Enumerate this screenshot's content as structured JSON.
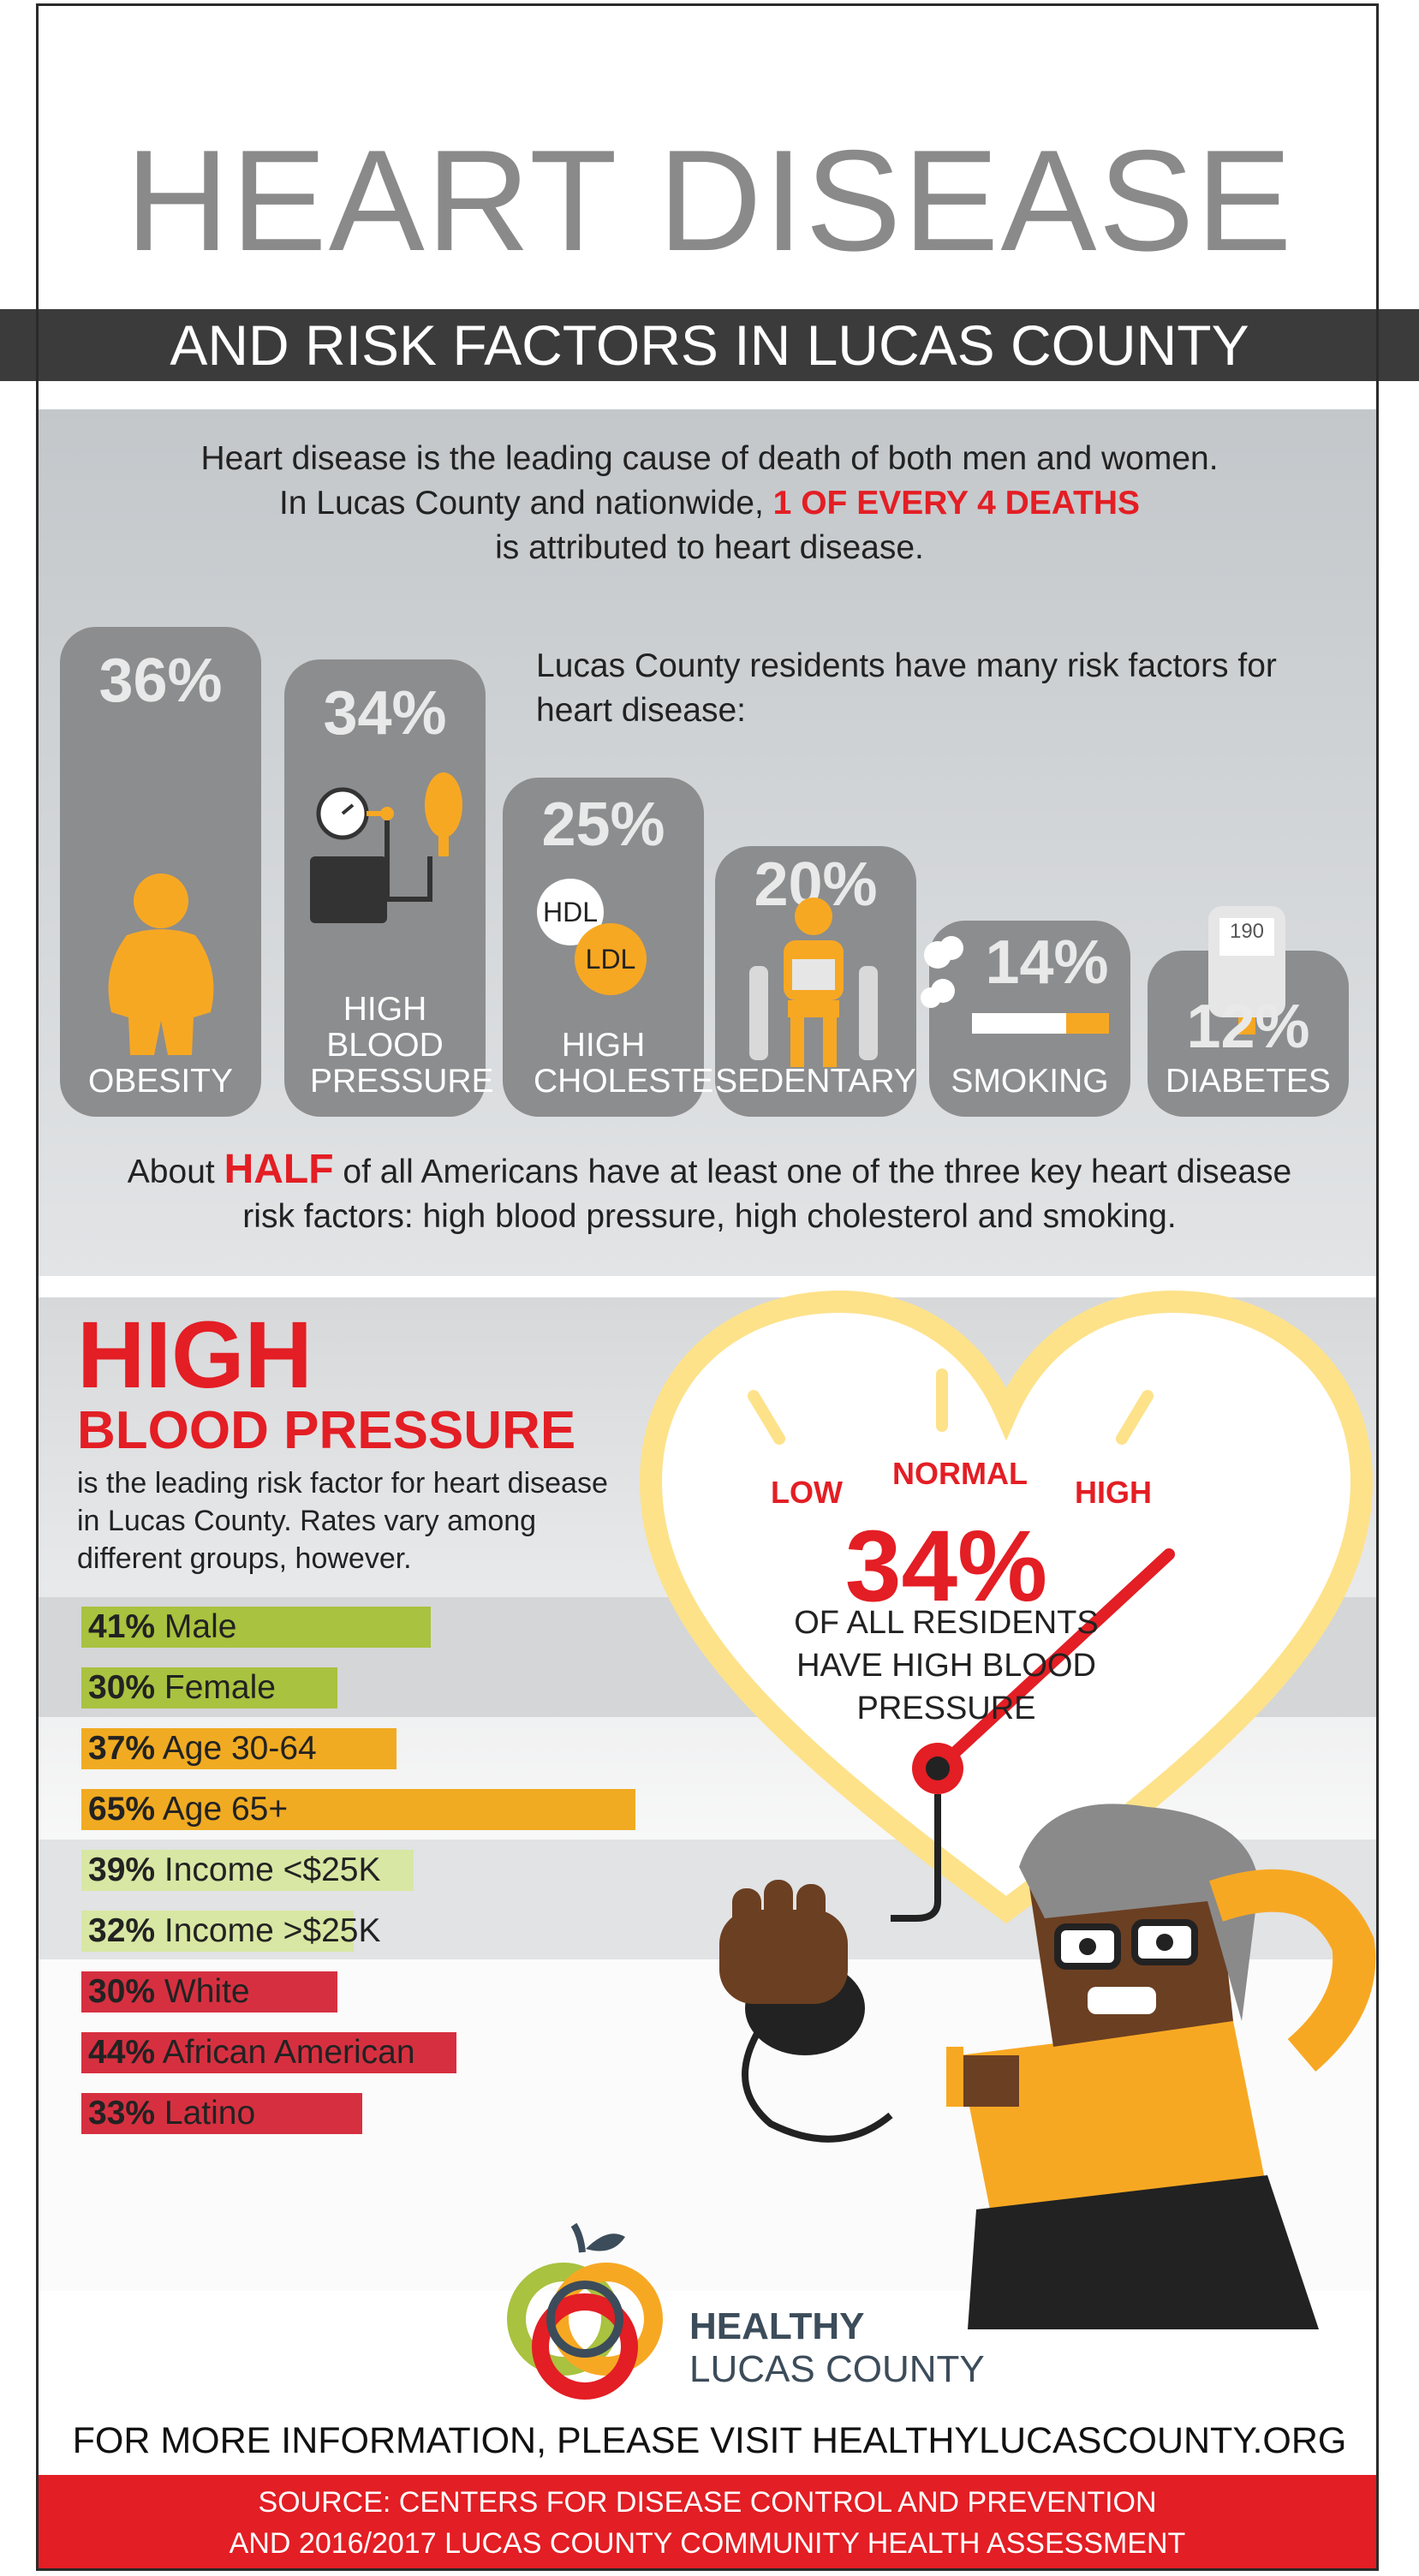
{
  "header": {
    "title": "HEART DISEASE",
    "subtitle": "AND RISK FACTORS IN LUCAS COUNTY"
  },
  "intro": {
    "line1": "Heart disease is the leading cause of death of both men and women.",
    "line2_pre": "In Lucas County and nationwide,",
    "line2_highlight": "1 OF EVERY 4 DEATHS",
    "line3": "is attributed to heart disease."
  },
  "risk_factors": {
    "intro": "Lucas County residents have many risk factors for heart disease:",
    "items": [
      {
        "percent": "36%",
        "label": "OBESITY",
        "value": 36
      },
      {
        "percent": "34%",
        "label": "HIGH BLOOD PRESSURE",
        "value": 34
      },
      {
        "percent": "25%",
        "label": "HIGH CHOLESTEROL",
        "value": 25,
        "badges": [
          "HDL",
          "LDL"
        ]
      },
      {
        "percent": "20%",
        "label": "SEDENTARY",
        "value": 20
      },
      {
        "percent": "14%",
        "label": "SMOKING",
        "value": 14
      },
      {
        "percent": "12%",
        "label": "DIABETES",
        "value": 12,
        "meter_reading": "190"
      }
    ]
  },
  "half_note": {
    "pre": "About",
    "highlight": "HALF",
    "post": "of all Americans have at least one of the three key heart disease risk factors: high blood pressure, high cholesterol and smoking."
  },
  "hbp": {
    "title_line1": "HIGH",
    "title_line2": "BLOOD PRESSURE",
    "description": "is the leading risk factor for heart disease in Lucas County. Rates vary among different groups, however.",
    "bars": [
      {
        "pct": "41%",
        "label": "Male",
        "value": 41,
        "color": "#a9c23f"
      },
      {
        "pct": "30%",
        "label": "Female",
        "value": 30,
        "color": "#a9c23f"
      },
      {
        "pct": "37%",
        "label": "Age 30-64",
        "value": 37,
        "color": "#f0ab22"
      },
      {
        "pct": "65%",
        "label": "Age 65+",
        "value": 65,
        "color": "#f0ab22"
      },
      {
        "pct": "39%",
        "label": "Income <$25K",
        "value": 39,
        "color": "#d8e7a3"
      },
      {
        "pct": "32%",
        "label": "Income >$25K",
        "value": 32,
        "color": "#d8e7a3"
      },
      {
        "pct": "30%",
        "label": "White",
        "value": 30,
        "color": "#d63040"
      },
      {
        "pct": "44%",
        "label": "African American",
        "value": 44,
        "color": "#d63040"
      },
      {
        "pct": "33%",
        "label": "Latino",
        "value": 33,
        "color": "#d63040"
      }
    ]
  },
  "gauge": {
    "low": "LOW",
    "normal": "NORMAL",
    "high": "HIGH",
    "percent": "34%",
    "caption": "OF ALL RESIDENTS HAVE HIGH BLOOD PRESSURE"
  },
  "logo": {
    "line1": "HEALTHY",
    "line2": "LUCAS COUNTY"
  },
  "footer": {
    "more_info": "FOR MORE INFORMATION, PLEASE VISIT HEALTHYLUCASCOUNTY.ORG",
    "source_line1": "SOURCE: CENTERS FOR DISEASE CONTROL AND PREVENTION",
    "source_line2": "AND 2016/2017 LUCAS COUNTY COMMUNITY HEALTH ASSESSMENT"
  },
  "colors": {
    "red": "#e31e24",
    "orange": "#f7a823",
    "grey_box": "#8c8d8e",
    "dark_bar": "#3b3b3b"
  }
}
